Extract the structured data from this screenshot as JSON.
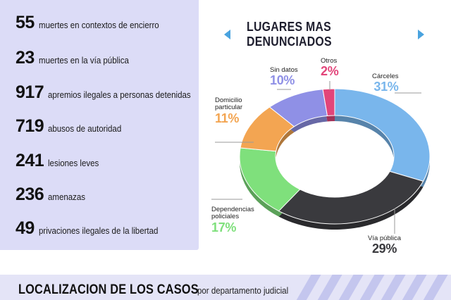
{
  "stats": [
    {
      "number": "55",
      "label": "muertes en contextos de encierro"
    },
    {
      "number": "23",
      "label": "muertes en la vía pública"
    },
    {
      "number": "917",
      "label": "apremios ilegales a personas detenidas"
    },
    {
      "number": "719",
      "label": "abusos de autoridad"
    },
    {
      "number": "241",
      "label": "lesiones leves"
    },
    {
      "number": "236",
      "label": "amenazas"
    },
    {
      "number": "49",
      "label": "privaciones ilegales de la libertad"
    }
  ],
  "chart_data": {
    "type": "pie",
    "title": "LUGARES MAS DENUNCIADOS",
    "categories": [
      "Cárceles",
      "Vía pública",
      "Dependencias policiales",
      "Domicilio particular",
      "Sin datos",
      "Otros"
    ],
    "values": [
      31,
      29,
      17,
      11,
      10,
      2
    ],
    "value_labels": [
      "31%",
      "29%",
      "17%",
      "11%",
      "10%",
      "2%"
    ],
    "label_lines": [
      [
        "Cárceles"
      ],
      [
        "Vía pública"
      ],
      [
        "Dependencias",
        "policiales"
      ],
      [
        "Domicilio",
        "particular"
      ],
      [
        "Sin datos"
      ],
      [
        "Otros"
      ]
    ],
    "colors": [
      "#79b6ec",
      "#3a3a3e",
      "#7fe07c",
      "#f3a552",
      "#8f90e6",
      "#e2457a"
    ],
    "donut": true
  },
  "footer": {
    "title": "LOCALIZACION DE LOS CASOS",
    "subtitle": "por departamento judicial"
  }
}
